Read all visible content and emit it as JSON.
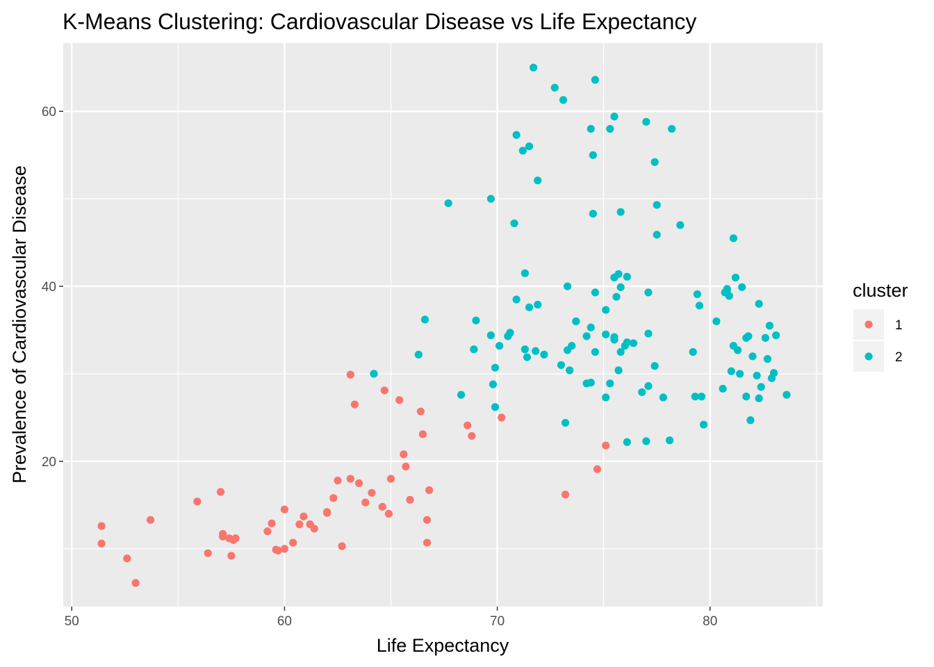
{
  "chart_data": {
    "type": "scatter",
    "title": "K-Means Clustering: Cardiovascular Disease vs Life Expectancy",
    "xlabel": "Life Expectancy",
    "ylabel": "Prevalence of Cardiovascular Disease",
    "xlim": [
      49.6,
      85.3
    ],
    "ylim": [
      3.4,
      67.8
    ],
    "x_ticks": [
      50,
      60,
      70,
      80
    ],
    "y_ticks": [
      20,
      40,
      60
    ],
    "grid": true,
    "legend": {
      "title": "cluster",
      "position": "right"
    },
    "series": [
      {
        "name": "1",
        "color": "#F8766D",
        "points": [
          [
            51.4,
            12.6
          ],
          [
            51.4,
            10.6
          ],
          [
            52.6,
            8.9
          ],
          [
            53.0,
            6.1
          ],
          [
            53.7,
            13.3
          ],
          [
            55.9,
            15.4
          ],
          [
            56.4,
            9.5
          ],
          [
            57.0,
            16.5
          ],
          [
            57.1,
            11.7
          ],
          [
            57.1,
            11.4
          ],
          [
            57.4,
            11.2
          ],
          [
            57.5,
            9.2
          ],
          [
            57.6,
            11.0
          ],
          [
            57.7,
            11.2
          ],
          [
            59.2,
            12.0
          ],
          [
            59.4,
            12.9
          ],
          [
            59.6,
            9.9
          ],
          [
            59.7,
            9.8
          ],
          [
            60.0,
            10.0
          ],
          [
            60.0,
            14.5
          ],
          [
            60.4,
            10.7
          ],
          [
            60.7,
            12.8
          ],
          [
            60.9,
            13.7
          ],
          [
            61.2,
            12.8
          ],
          [
            61.4,
            12.3
          ],
          [
            62.0,
            14.2
          ],
          [
            62.0,
            14.1
          ],
          [
            62.3,
            15.8
          ],
          [
            62.5,
            17.8
          ],
          [
            62.7,
            10.3
          ],
          [
            63.1,
            18.0
          ],
          [
            63.1,
            29.9
          ],
          [
            63.3,
            26.5
          ],
          [
            63.5,
            17.5
          ],
          [
            63.8,
            15.3
          ],
          [
            64.1,
            16.4
          ],
          [
            64.6,
            14.8
          ],
          [
            64.7,
            28.1
          ],
          [
            64.9,
            14.0
          ],
          [
            65.0,
            18.0
          ],
          [
            65.4,
            27.0
          ],
          [
            65.6,
            20.8
          ],
          [
            65.7,
            19.4
          ],
          [
            65.9,
            15.6
          ],
          [
            66.4,
            25.7
          ],
          [
            66.5,
            23.1
          ],
          [
            66.7,
            13.3
          ],
          [
            66.7,
            10.7
          ],
          [
            66.8,
            16.7
          ],
          [
            68.6,
            24.1
          ],
          [
            68.8,
            22.9
          ],
          [
            70.2,
            25.0
          ],
          [
            73.2,
            16.2
          ],
          [
            74.7,
            19.1
          ],
          [
            75.1,
            21.8
          ]
        ]
      },
      {
        "name": "2",
        "color": "#00BFC4",
        "points": [
          [
            64.2,
            30.0
          ],
          [
            66.3,
            32.2
          ],
          [
            66.6,
            36.2
          ],
          [
            67.7,
            49.5
          ],
          [
            68.3,
            27.6
          ],
          [
            68.9,
            32.8
          ],
          [
            69.0,
            36.1
          ],
          [
            69.7,
            34.4
          ],
          [
            69.7,
            50.0
          ],
          [
            69.8,
            28.8
          ],
          [
            69.9,
            26.2
          ],
          [
            69.9,
            30.7
          ],
          [
            70.1,
            33.2
          ],
          [
            70.5,
            34.3
          ],
          [
            70.6,
            34.7
          ],
          [
            70.8,
            47.2
          ],
          [
            70.9,
            38.5
          ],
          [
            70.9,
            57.3
          ],
          [
            71.2,
            55.5
          ],
          [
            71.3,
            41.5
          ],
          [
            71.3,
            32.8
          ],
          [
            71.4,
            31.9
          ],
          [
            71.5,
            37.6
          ],
          [
            71.5,
            56.0
          ],
          [
            71.7,
            65.0
          ],
          [
            71.8,
            32.6
          ],
          [
            71.9,
            37.9
          ],
          [
            71.9,
            52.1
          ],
          [
            72.2,
            32.2
          ],
          [
            72.7,
            62.7
          ],
          [
            73.0,
            31.0
          ],
          [
            73.1,
            61.3
          ],
          [
            73.2,
            24.4
          ],
          [
            73.3,
            40.0
          ],
          [
            73.3,
            32.7
          ],
          [
            73.4,
            30.4
          ],
          [
            73.5,
            33.2
          ],
          [
            73.7,
            36.0
          ],
          [
            74.2,
            34.3
          ],
          [
            74.2,
            28.9
          ],
          [
            74.4,
            29.0
          ],
          [
            74.4,
            35.3
          ],
          [
            74.4,
            58.0
          ],
          [
            74.5,
            48.3
          ],
          [
            74.5,
            55.0
          ],
          [
            74.6,
            32.5
          ],
          [
            74.6,
            39.3
          ],
          [
            74.6,
            63.6
          ],
          [
            75.1,
            34.5
          ],
          [
            75.1,
            27.3
          ],
          [
            75.1,
            37.3
          ],
          [
            75.3,
            28.9
          ],
          [
            75.3,
            58.0
          ],
          [
            75.5,
            34.2
          ],
          [
            75.5,
            33.9
          ],
          [
            75.5,
            41.0
          ],
          [
            75.5,
            59.4
          ],
          [
            75.6,
            38.8
          ],
          [
            75.7,
            30.4
          ],
          [
            75.7,
            41.4
          ],
          [
            75.8,
            32.5
          ],
          [
            75.8,
            39.9
          ],
          [
            75.8,
            48.5
          ],
          [
            76.0,
            33.2
          ],
          [
            76.1,
            22.2
          ],
          [
            76.1,
            33.6
          ],
          [
            76.1,
            41.1
          ],
          [
            76.4,
            33.5
          ],
          [
            76.8,
            27.9
          ],
          [
            77.0,
            22.3
          ],
          [
            77.0,
            58.8
          ],
          [
            77.1,
            28.6
          ],
          [
            77.1,
            39.3
          ],
          [
            77.1,
            34.6
          ],
          [
            77.4,
            30.9
          ],
          [
            77.4,
            54.2
          ],
          [
            77.5,
            45.9
          ],
          [
            77.5,
            49.3
          ],
          [
            77.8,
            27.3
          ],
          [
            78.1,
            22.4
          ],
          [
            78.2,
            58.0
          ],
          [
            78.6,
            47.0
          ],
          [
            79.2,
            32.5
          ],
          [
            79.3,
            27.4
          ],
          [
            79.4,
            39.1
          ],
          [
            79.5,
            37.8
          ],
          [
            79.6,
            27.4
          ],
          [
            79.7,
            24.2
          ],
          [
            80.3,
            36.0
          ],
          [
            80.6,
            28.3
          ],
          [
            80.7,
            39.3
          ],
          [
            80.8,
            39.5
          ],
          [
            80.8,
            39.7
          ],
          [
            80.9,
            38.9
          ],
          [
            81.0,
            30.3
          ],
          [
            81.1,
            33.2
          ],
          [
            81.1,
            45.5
          ],
          [
            81.2,
            41.0
          ],
          [
            81.3,
            32.7
          ],
          [
            81.4,
            30.0
          ],
          [
            81.5,
            39.9
          ],
          [
            81.7,
            34.1
          ],
          [
            81.7,
            27.4
          ],
          [
            81.8,
            34.3
          ],
          [
            81.9,
            24.7
          ],
          [
            82.0,
            32.0
          ],
          [
            82.2,
            29.8
          ],
          [
            82.3,
            38.0
          ],
          [
            82.3,
            27.2
          ],
          [
            82.4,
            28.5
          ],
          [
            82.6,
            34.1
          ],
          [
            82.7,
            31.7
          ],
          [
            82.8,
            35.5
          ],
          [
            82.9,
            29.5
          ],
          [
            83.0,
            30.1
          ],
          [
            83.1,
            34.4
          ],
          [
            83.6,
            27.6
          ]
        ]
      }
    ]
  }
}
